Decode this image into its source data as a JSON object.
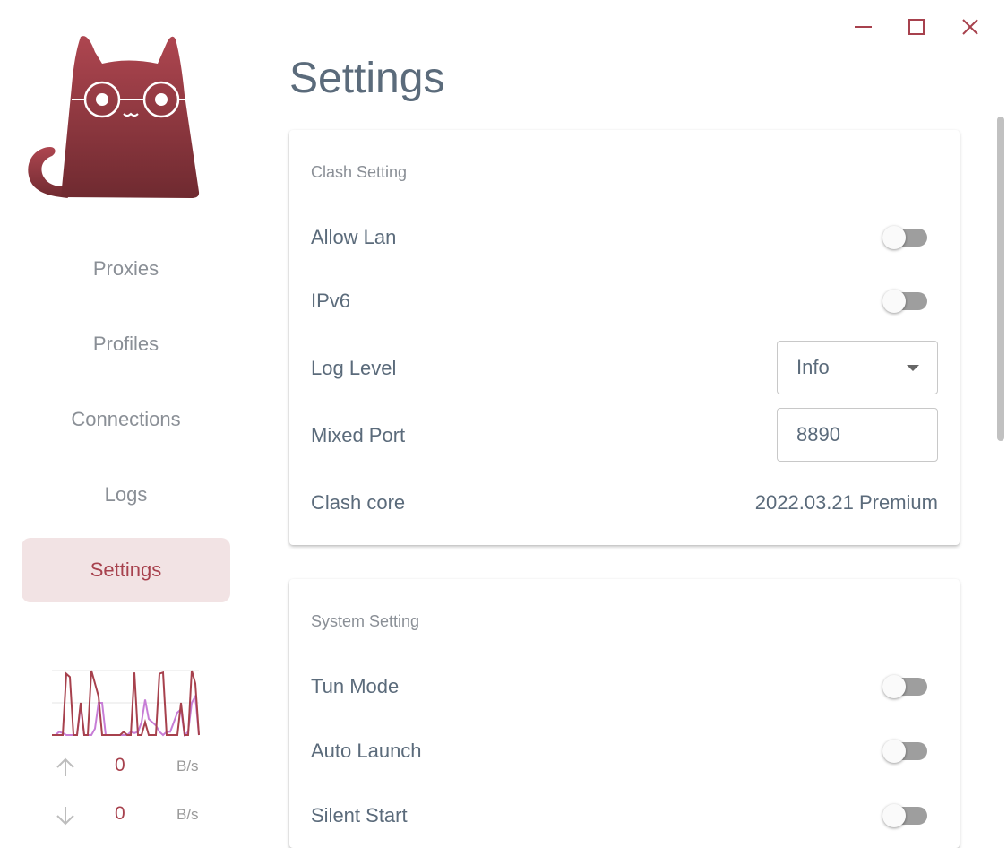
{
  "nav": {
    "items": [
      {
        "label": "Proxies"
      },
      {
        "label": "Profiles"
      },
      {
        "label": "Connections"
      },
      {
        "label": "Logs"
      },
      {
        "label": "Settings",
        "active": true
      }
    ]
  },
  "traffic": {
    "upload": {
      "value": "0",
      "unit": "B/s"
    },
    "download": {
      "value": "0",
      "unit": "B/s"
    },
    "graph_upload": [
      0,
      0,
      0,
      0,
      0.95,
      0.9,
      0,
      0,
      0.5,
      0,
      0,
      1,
      0.8,
      0.6,
      0,
      0,
      0,
      0,
      0,
      0,
      0.05,
      0,
      0,
      0.97,
      0,
      0,
      0.2,
      0,
      0,
      0,
      0.95,
      0.97,
      0,
      0,
      0,
      0,
      0.5,
      0,
      0,
      1,
      0.8,
      0
    ],
    "graph_download": [
      0,
      0,
      0.05,
      0.03,
      0,
      0,
      0,
      0,
      0.45,
      0,
      0,
      0,
      0.1,
      0.5,
      0.5,
      0,
      0,
      0,
      0,
      0,
      0,
      0,
      0.05,
      0.03,
      0.05,
      0.2,
      0.55,
      0.25,
      0.2,
      0.15,
      0.05,
      0,
      0.05,
      0.05,
      0.2,
      0.35,
      0.4,
      0,
      0.05,
      0.5,
      0.6,
      0
    ]
  },
  "window": {
    "minimize": "minimize",
    "maximize": "maximize",
    "close": "close"
  },
  "page_title": "Settings",
  "clash": {
    "title": "Clash Setting",
    "allow_lan": {
      "label": "Allow Lan",
      "on": false
    },
    "ipv6": {
      "label": "IPv6",
      "on": false
    },
    "log_level": {
      "label": "Log Level",
      "value": "Info"
    },
    "mixed_port": {
      "label": "Mixed Port",
      "value": "8890"
    },
    "core": {
      "label": "Clash core",
      "value": "2022.03.21 Premium"
    }
  },
  "system": {
    "title": "System Setting",
    "tun": {
      "label": "Tun Mode",
      "on": false
    },
    "auto_launch": {
      "label": "Auto Launch",
      "on": false
    },
    "silent_start": {
      "label": "Silent Start",
      "on": false
    }
  },
  "colors": {
    "accent": "#a7414d",
    "active_bg": "#f2e3e4",
    "download_line": "#c77dd6"
  }
}
